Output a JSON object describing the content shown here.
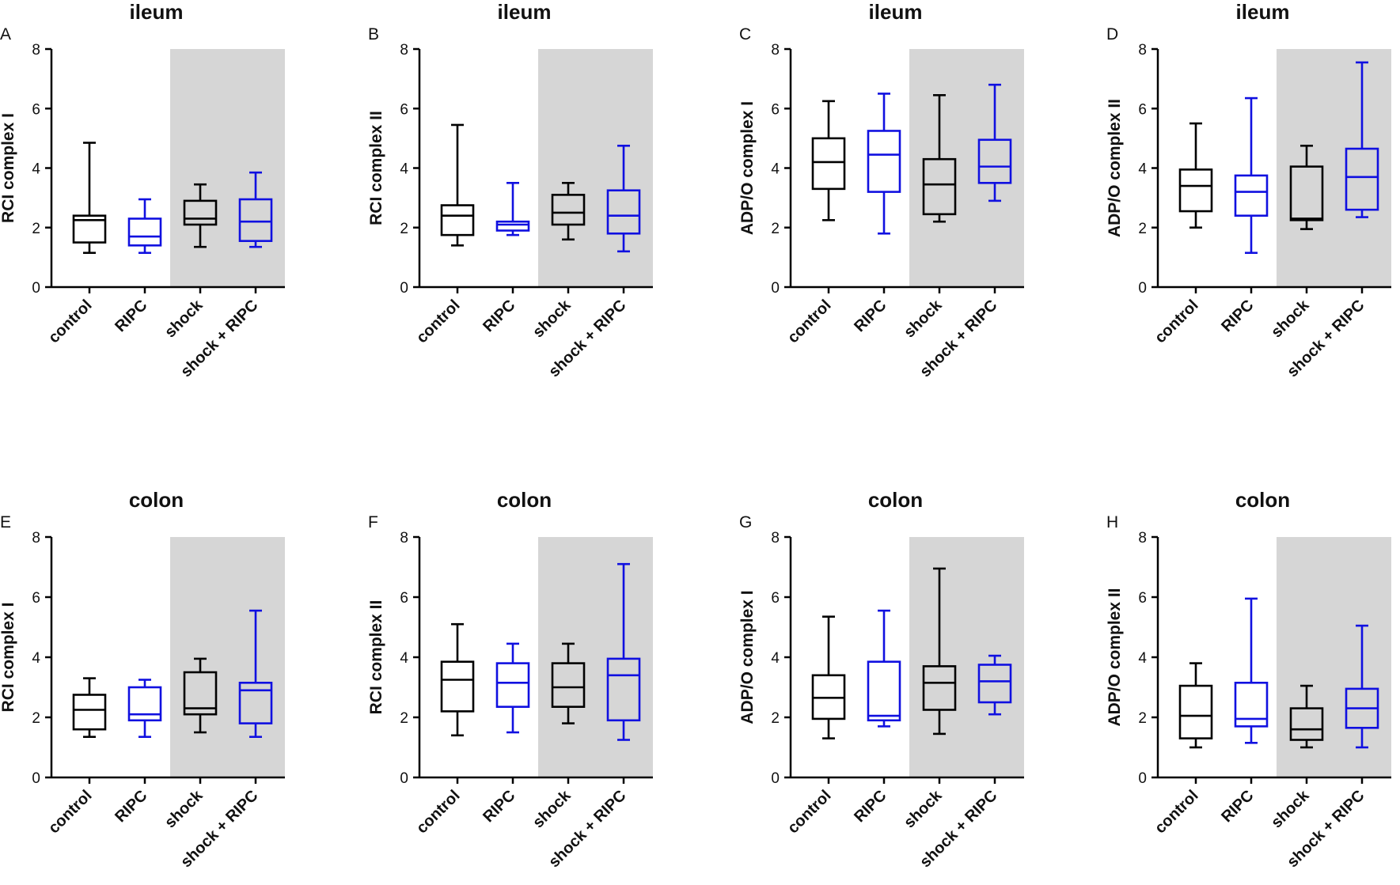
{
  "colors": {
    "black_series": "#000000",
    "blue_series": "#1010e0",
    "shaded_region": "#d6d6d6"
  },
  "chart_data": [
    {
      "panel": "A",
      "title": "ileum",
      "type": "box",
      "ylabel": "RCI complex I",
      "ylim": [
        0,
        8
      ],
      "yticks": [
        0,
        2,
        4,
        6,
        8
      ],
      "categories": [
        "control",
        "RIPC",
        "shock",
        "shock + RIPC"
      ],
      "shaded_categories": [
        "shock",
        "shock + RIPC"
      ],
      "boxes": [
        {
          "category": "control",
          "color": "black",
          "min": 1.15,
          "q1": 1.5,
          "median": 2.25,
          "q3": 2.4,
          "max": 4.85
        },
        {
          "category": "RIPC",
          "color": "blue",
          "min": 1.15,
          "q1": 1.4,
          "median": 1.7,
          "q3": 2.3,
          "max": 2.95
        },
        {
          "category": "shock",
          "color": "black",
          "min": 1.35,
          "q1": 2.1,
          "median": 2.3,
          "q3": 2.9,
          "max": 3.45
        },
        {
          "category": "shock + RIPC",
          "color": "blue",
          "min": 1.35,
          "q1": 1.55,
          "median": 2.2,
          "q3": 2.95,
          "max": 3.85
        }
      ]
    },
    {
      "panel": "B",
      "title": "ileum",
      "type": "box",
      "ylabel": "RCI complex II",
      "ylim": [
        0,
        8
      ],
      "yticks": [
        0,
        2,
        4,
        6,
        8
      ],
      "categories": [
        "control",
        "RIPC",
        "shock",
        "shock + RIPC"
      ],
      "shaded_categories": [
        "shock",
        "shock + RIPC"
      ],
      "boxes": [
        {
          "category": "control",
          "color": "black",
          "min": 1.4,
          "q1": 1.75,
          "median": 2.4,
          "q3": 2.75,
          "max": 5.45
        },
        {
          "category": "RIPC",
          "color": "blue",
          "min": 1.75,
          "q1": 1.9,
          "median": 2.1,
          "q3": 2.2,
          "max": 3.5
        },
        {
          "category": "shock",
          "color": "black",
          "min": 1.6,
          "q1": 2.1,
          "median": 2.5,
          "q3": 3.1,
          "max": 3.5
        },
        {
          "category": "shock + RIPC",
          "color": "blue",
          "min": 1.2,
          "q1": 1.8,
          "median": 2.4,
          "q3": 3.25,
          "max": 4.75
        }
      ]
    },
    {
      "panel": "C",
      "title": "ileum",
      "type": "box",
      "ylabel": "ADP/O complex I",
      "ylim": [
        0,
        8
      ],
      "yticks": [
        0,
        2,
        4,
        6,
        8
      ],
      "categories": [
        "control",
        "RIPC",
        "shock",
        "shock + RIPC"
      ],
      "shaded_categories": [
        "shock",
        "shock + RIPC"
      ],
      "boxes": [
        {
          "category": "control",
          "color": "black",
          "min": 2.25,
          "q1": 3.3,
          "median": 4.2,
          "q3": 5.0,
          "max": 6.25
        },
        {
          "category": "RIPC",
          "color": "blue",
          "min": 1.8,
          "q1": 3.2,
          "median": 4.45,
          "q3": 5.25,
          "max": 6.5
        },
        {
          "category": "shock",
          "color": "black",
          "min": 2.2,
          "q1": 2.45,
          "median": 3.45,
          "q3": 4.3,
          "max": 6.45
        },
        {
          "category": "shock + RIPC",
          "color": "blue",
          "min": 2.9,
          "q1": 3.5,
          "median": 4.05,
          "q3": 4.95,
          "max": 6.8
        }
      ]
    },
    {
      "panel": "D",
      "title": "ileum",
      "type": "box",
      "ylabel": "ADP/O complex II",
      "ylim": [
        0,
        8
      ],
      "yticks": [
        0,
        2,
        4,
        6,
        8
      ],
      "categories": [
        "control",
        "RIPC",
        "shock",
        "shock + RIPC"
      ],
      "shaded_categories": [
        "shock",
        "shock + RIPC"
      ],
      "boxes": [
        {
          "category": "control",
          "color": "black",
          "min": 2.0,
          "q1": 2.55,
          "median": 3.4,
          "q3": 3.95,
          "max": 5.5
        },
        {
          "category": "RIPC",
          "color": "blue",
          "min": 1.15,
          "q1": 2.4,
          "median": 3.2,
          "q3": 3.75,
          "max": 6.35
        },
        {
          "category": "shock",
          "color": "black",
          "min": 1.95,
          "q1": 2.25,
          "median": 2.3,
          "q3": 4.05,
          "max": 4.75
        },
        {
          "category": "shock + RIPC",
          "color": "blue",
          "min": 2.35,
          "q1": 2.6,
          "median": 3.7,
          "q3": 4.65,
          "max": 7.55
        }
      ]
    },
    {
      "panel": "E",
      "title": "colon",
      "type": "box",
      "ylabel": "RCI complex I",
      "ylim": [
        0,
        8
      ],
      "yticks": [
        0,
        2,
        4,
        6,
        8
      ],
      "categories": [
        "control",
        "RIPC",
        "shock",
        "shock + RIPC"
      ],
      "shaded_categories": [
        "shock",
        "shock + RIPC"
      ],
      "boxes": [
        {
          "category": "control",
          "color": "black",
          "min": 1.35,
          "q1": 1.6,
          "median": 2.25,
          "q3": 2.75,
          "max": 3.3
        },
        {
          "category": "RIPC",
          "color": "blue",
          "min": 1.35,
          "q1": 1.9,
          "median": 2.1,
          "q3": 3.0,
          "max": 3.25
        },
        {
          "category": "shock",
          "color": "black",
          "min": 1.5,
          "q1": 2.1,
          "median": 2.3,
          "q3": 3.5,
          "max": 3.95
        },
        {
          "category": "shock + RIPC",
          "color": "blue",
          "min": 1.35,
          "q1": 1.8,
          "median": 2.9,
          "q3": 3.15,
          "max": 5.55
        }
      ]
    },
    {
      "panel": "F",
      "title": "colon",
      "type": "box",
      "ylabel": "RCI complex II",
      "ylim": [
        0,
        8
      ],
      "yticks": [
        0,
        2,
        4,
        6,
        8
      ],
      "categories": [
        "control",
        "RIPC",
        "shock",
        "shock + RIPC"
      ],
      "shaded_categories": [
        "shock",
        "shock + RIPC"
      ],
      "boxes": [
        {
          "category": "control",
          "color": "black",
          "min": 1.4,
          "q1": 2.2,
          "median": 3.25,
          "q3": 3.85,
          "max": 5.1
        },
        {
          "category": "RIPC",
          "color": "blue",
          "min": 1.5,
          "q1": 2.35,
          "median": 3.15,
          "q3": 3.8,
          "max": 4.45
        },
        {
          "category": "shock",
          "color": "black",
          "min": 1.8,
          "q1": 2.35,
          "median": 3.0,
          "q3": 3.8,
          "max": 4.45
        },
        {
          "category": "shock + RIPC",
          "color": "blue",
          "min": 1.25,
          "q1": 1.9,
          "median": 3.4,
          "q3": 3.95,
          "max": 7.1
        }
      ]
    },
    {
      "panel": "G",
      "title": "colon",
      "type": "box",
      "ylabel": "ADP/O complex I",
      "ylim": [
        0,
        8
      ],
      "yticks": [
        0,
        2,
        4,
        6,
        8
      ],
      "categories": [
        "control",
        "RIPC",
        "shock",
        "shock + RIPC"
      ],
      "shaded_categories": [
        "shock",
        "shock + RIPC"
      ],
      "boxes": [
        {
          "category": "control",
          "color": "black",
          "min": 1.3,
          "q1": 1.95,
          "median": 2.65,
          "q3": 3.4,
          "max": 5.35
        },
        {
          "category": "RIPC",
          "color": "blue",
          "min": 1.7,
          "q1": 1.9,
          "median": 2.05,
          "q3": 3.85,
          "max": 5.55
        },
        {
          "category": "shock",
          "color": "black",
          "min": 1.45,
          "q1": 2.25,
          "median": 3.15,
          "q3": 3.7,
          "max": 6.95
        },
        {
          "category": "shock + RIPC",
          "color": "blue",
          "min": 2.1,
          "q1": 2.5,
          "median": 3.2,
          "q3": 3.75,
          "max": 4.05
        }
      ]
    },
    {
      "panel": "H",
      "title": "colon",
      "type": "box",
      "ylabel": "ADP/O complex II",
      "ylim": [
        0,
        8
      ],
      "yticks": [
        0,
        2,
        4,
        6,
        8
      ],
      "categories": [
        "control",
        "RIPC",
        "shock",
        "shock + RIPC"
      ],
      "shaded_categories": [
        "shock",
        "shock + RIPC"
      ],
      "boxes": [
        {
          "category": "control",
          "color": "black",
          "min": 1.0,
          "q1": 1.3,
          "median": 2.05,
          "q3": 3.05,
          "max": 3.8
        },
        {
          "category": "RIPC",
          "color": "blue",
          "min": 1.15,
          "q1": 1.7,
          "median": 1.95,
          "q3": 3.15,
          "max": 5.95
        },
        {
          "category": "shock",
          "color": "black",
          "min": 1.0,
          "q1": 1.25,
          "median": 1.6,
          "q3": 2.3,
          "max": 3.05
        },
        {
          "category": "shock + RIPC",
          "color": "blue",
          "min": 1.0,
          "q1": 1.65,
          "median": 2.3,
          "q3": 2.95,
          "max": 5.05
        }
      ]
    }
  ]
}
